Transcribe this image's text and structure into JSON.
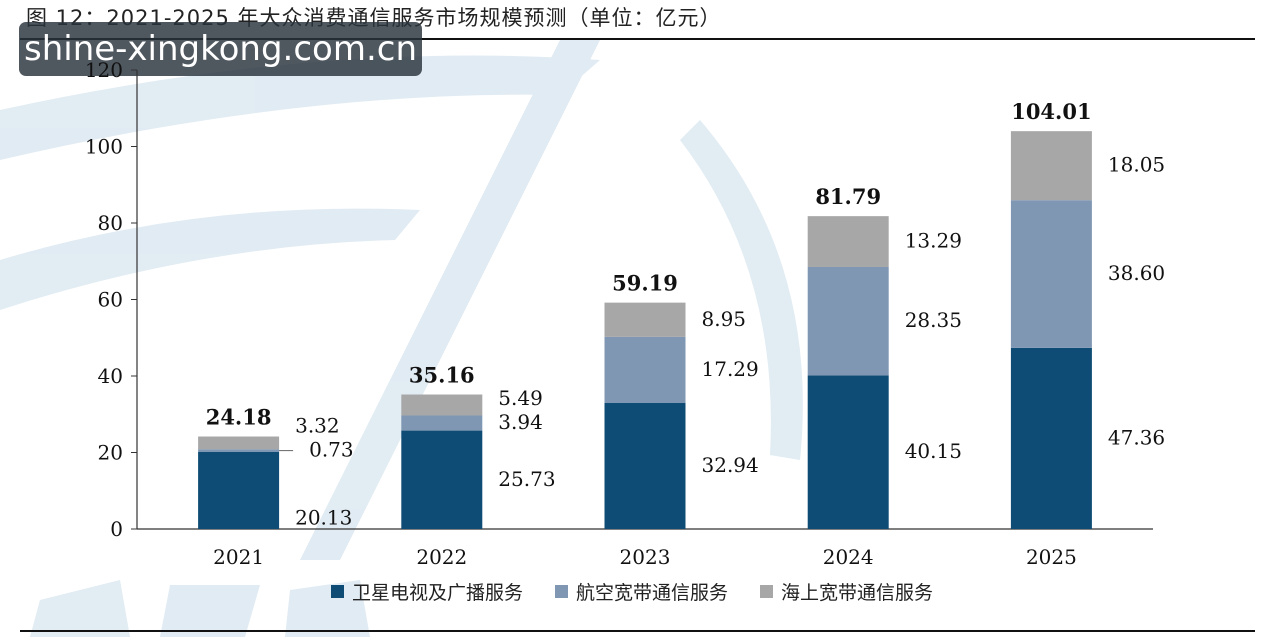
{
  "figure": {
    "title": "图 12：2021-2025 年大众消费通信服务市场规模预测（单位：亿元）",
    "watermark_text": "shine-xingkong.com.cn"
  },
  "chart_data": {
    "type": "bar",
    "stacked": true,
    "categories": [
      "2021",
      "2022",
      "2023",
      "2024",
      "2025"
    ],
    "series": [
      {
        "name": "卫星电视及广播服务",
        "values": [
          20.13,
          25.73,
          32.94,
          40.15,
          47.36
        ],
        "color": "#0f4c75"
      },
      {
        "name": "航空宽带通信服务",
        "values": [
          0.73,
          3.94,
          17.29,
          28.35,
          38.6
        ],
        "color": "#7f97b3"
      },
      {
        "name": "海上宽带通信服务",
        "values": [
          3.32,
          5.49,
          8.95,
          13.29,
          18.05
        ],
        "color": "#a7a7a7"
      }
    ],
    "value_labels": [
      [
        "20.13",
        "25.73",
        "32.94",
        "40.15",
        "47.36"
      ],
      [
        "0.73",
        "3.94",
        "17.29",
        "28.35",
        "38.60"
      ],
      [
        "3.32",
        "5.49",
        "8.95",
        "13.29",
        "18.05"
      ]
    ],
    "totals": [
      24.18,
      35.16,
      59.19,
      81.79,
      104.01
    ],
    "total_labels": [
      "24.18",
      "35.16",
      "59.19",
      "81.79",
      "104.01"
    ],
    "ylim": [
      0,
      120
    ],
    "yticks": [
      0,
      20,
      40,
      60,
      80,
      100,
      120
    ],
    "grid": false,
    "legend_position": "bottom"
  }
}
